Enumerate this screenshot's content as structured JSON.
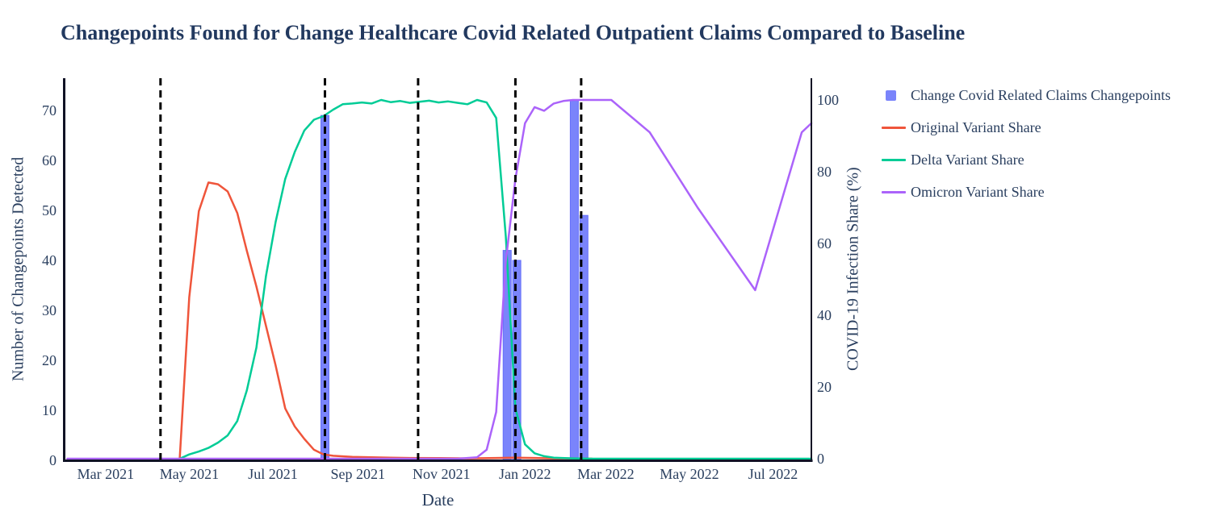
{
  "title": {
    "text": "Changepoints Found for Change Healthcare Covid Related Outpatient Claims Compared to Baseline"
  },
  "legend": {
    "items": [
      {
        "label": "Change Covid Related Claims Changepoints",
        "marker": "square",
        "color": "#636EFA"
      },
      {
        "label": "Original Variant Share",
        "marker": "line",
        "color": "#EF553B"
      },
      {
        "label": "Delta Variant Share",
        "marker": "line",
        "color": "#00CC96"
      },
      {
        "label": "Omicron Variant Share",
        "marker": "line",
        "color": "#AB63FA"
      }
    ]
  },
  "chart_data": {
    "type": "bar+line",
    "title": "Changepoints Found for Change Healthcare Covid Related Outpatient Claims Compared to Baseline",
    "xlabel": "Date",
    "ylabel_left": "Number of Changepoints Detected",
    "ylabel_right": "COVID-19 Infection Share (%)",
    "grid": false,
    "legend_position": "right",
    "x_axis": {
      "range": [
        "2021-01-30",
        "2022-07-29"
      ],
      "ticks": [
        {
          "date": "2021-03-01",
          "label": "Mar 2021"
        },
        {
          "date": "2021-05-01",
          "label": "May 2021"
        },
        {
          "date": "2021-07-01",
          "label": "Jul 2021"
        },
        {
          "date": "2021-09-01",
          "label": "Sep 2021"
        },
        {
          "date": "2021-11-01",
          "label": "Nov 2021"
        },
        {
          "date": "2022-01-01",
          "label": "Jan 2022"
        },
        {
          "date": "2022-03-01",
          "label": "Mar 2022"
        },
        {
          "date": "2022-05-01",
          "label": "May 2022"
        },
        {
          "date": "2022-07-01",
          "label": "Jul 2022"
        }
      ]
    },
    "y_left": {
      "range": [
        0,
        76.4
      ],
      "ticks": [
        0,
        10,
        20,
        30,
        40,
        50,
        60,
        70
      ]
    },
    "y_right": {
      "range": [
        0,
        106
      ],
      "ticks": [
        0,
        20,
        40,
        60,
        80,
        100
      ]
    },
    "bars": {
      "name": "Change Covid Related Claims Changepoints",
      "color": "#636EFA",
      "axis": "left",
      "points": [
        [
          "2021-08-08",
          69
        ],
        [
          "2021-12-19",
          42
        ],
        [
          "2021-12-26",
          40
        ],
        [
          "2022-02-06",
          72
        ],
        [
          "2022-02-13",
          49
        ]
      ]
    },
    "changepoint_vlines": {
      "style": "dashed",
      "color": "#000000",
      "dates": [
        "2021-04-10",
        "2021-08-08",
        "2021-10-15",
        "2021-12-25",
        "2022-02-11"
      ]
    },
    "series": [
      {
        "name": "Original Variant Share",
        "color": "#EF553B",
        "axis": "right",
        "points": [
          [
            "2021-04-24",
            0
          ],
          [
            "2021-05-01",
            45
          ],
          [
            "2021-05-08",
            69
          ],
          [
            "2021-05-15",
            77
          ],
          [
            "2021-05-22",
            76.5
          ],
          [
            "2021-05-29",
            74.5
          ],
          [
            "2021-06-05",
            68.5
          ],
          [
            "2021-06-12",
            58
          ],
          [
            "2021-06-19",
            48
          ],
          [
            "2021-06-26",
            37
          ],
          [
            "2021-07-03",
            26
          ],
          [
            "2021-07-10",
            14
          ],
          [
            "2021-07-17",
            9
          ],
          [
            "2021-07-24",
            5.5
          ],
          [
            "2021-07-31",
            2.5
          ],
          [
            "2021-08-07",
            1.2
          ],
          [
            "2021-08-14",
            0.8
          ],
          [
            "2021-08-28",
            0.5
          ],
          [
            "2021-09-11",
            0.4
          ],
          [
            "2021-09-25",
            0.3
          ],
          [
            "2021-10-09",
            0.2
          ],
          [
            "2021-10-30",
            0.15
          ],
          [
            "2021-11-20",
            0.1
          ],
          [
            "2021-12-11",
            0.2
          ],
          [
            "2021-12-25",
            0.3
          ],
          [
            "2022-01-08",
            0.2
          ],
          [
            "2022-01-22",
            0.1
          ],
          [
            "2022-02-05",
            0.1
          ],
          [
            "2022-02-19",
            0
          ]
        ]
      },
      {
        "name": "Delta Variant Share",
        "color": "#00CC96",
        "axis": "right",
        "points": [
          [
            "2021-04-24",
            0
          ],
          [
            "2021-05-01",
            1.2
          ],
          [
            "2021-05-08",
            2
          ],
          [
            "2021-05-15",
            3
          ],
          [
            "2021-05-22",
            4.5
          ],
          [
            "2021-05-29",
            6.5
          ],
          [
            "2021-06-05",
            10.5
          ],
          [
            "2021-06-12",
            19
          ],
          [
            "2021-06-19",
            31
          ],
          [
            "2021-06-26",
            51
          ],
          [
            "2021-07-03",
            66
          ],
          [
            "2021-07-10",
            78
          ],
          [
            "2021-07-17",
            85.5
          ],
          [
            "2021-07-24",
            91.5
          ],
          [
            "2021-07-31",
            94.5
          ],
          [
            "2021-08-07",
            95.5
          ],
          [
            "2021-08-14",
            97.3
          ],
          [
            "2021-08-21",
            98.8
          ],
          [
            "2021-08-28",
            99
          ],
          [
            "2021-09-04",
            99.3
          ],
          [
            "2021-09-11",
            99
          ],
          [
            "2021-09-18",
            100
          ],
          [
            "2021-09-25",
            99.4
          ],
          [
            "2021-10-02",
            99.7
          ],
          [
            "2021-10-09",
            99.2
          ],
          [
            "2021-10-16",
            99.5
          ],
          [
            "2021-10-23",
            99.8
          ],
          [
            "2021-10-30",
            99.3
          ],
          [
            "2021-11-06",
            99.6
          ],
          [
            "2021-11-13",
            99.2
          ],
          [
            "2021-11-20",
            98.8
          ],
          [
            "2021-11-27",
            100
          ],
          [
            "2021-12-04",
            99.3
          ],
          [
            "2021-12-11",
            95
          ],
          [
            "2021-12-18",
            62
          ],
          [
            "2021-12-25",
            14
          ],
          [
            "2022-01-01",
            4
          ],
          [
            "2022-01-08",
            1.5
          ],
          [
            "2022-01-15",
            0.7
          ],
          [
            "2022-01-22",
            0.3
          ],
          [
            "2022-02-05",
            0.1
          ],
          [
            "2022-02-19",
            0
          ],
          [
            "2022-04-02",
            0
          ],
          [
            "2022-05-14",
            0
          ],
          [
            "2022-06-25",
            0
          ],
          [
            "2022-07-29",
            0
          ]
        ]
      },
      {
        "name": "Omicron Variant Share",
        "color": "#AB63FA",
        "axis": "right",
        "points": [
          [
            "2021-02-01",
            0
          ],
          [
            "2021-04-01",
            0
          ],
          [
            "2021-06-01",
            0
          ],
          [
            "2021-08-01",
            0
          ],
          [
            "2021-10-01",
            0
          ],
          [
            "2021-11-13",
            0
          ],
          [
            "2021-11-27",
            0.4
          ],
          [
            "2021-12-04",
            2.5
          ],
          [
            "2021-12-11",
            13
          ],
          [
            "2021-12-18",
            55
          ],
          [
            "2021-12-25",
            78
          ],
          [
            "2022-01-01",
            93.5
          ],
          [
            "2022-01-08",
            98
          ],
          [
            "2022-01-15",
            97
          ],
          [
            "2022-01-22",
            99
          ],
          [
            "2022-01-29",
            99.7
          ],
          [
            "2022-02-05",
            100
          ],
          [
            "2022-02-19",
            100
          ],
          [
            "2022-03-05",
            100
          ],
          [
            "2022-04-02",
            91
          ],
          [
            "2022-05-07",
            70
          ],
          [
            "2022-06-18",
            47
          ],
          [
            "2022-07-22",
            91
          ],
          [
            "2022-07-29",
            93.5
          ]
        ]
      }
    ]
  }
}
